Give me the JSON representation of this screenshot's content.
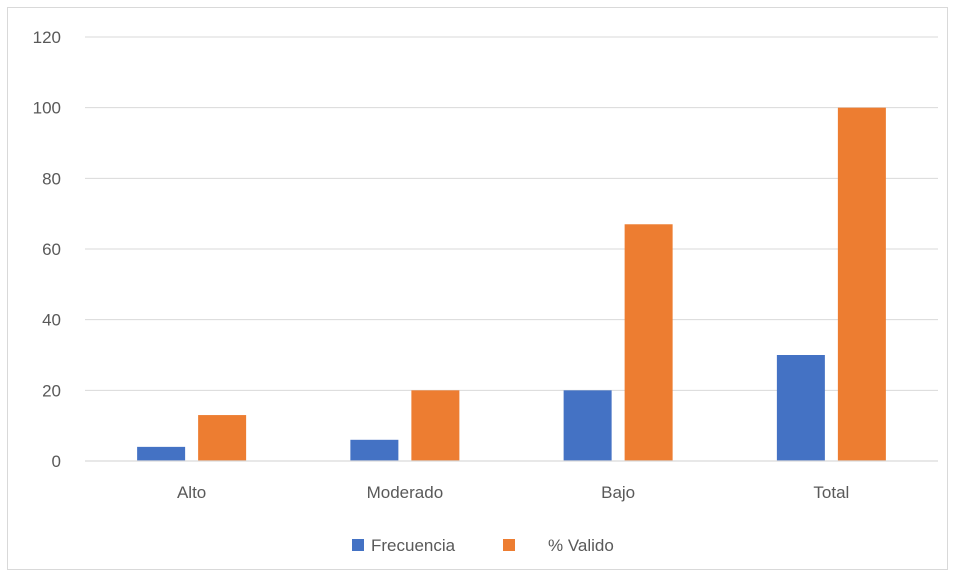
{
  "chart_data": {
    "type": "bar",
    "categories": [
      "Alto",
      "Moderado",
      "Bajo",
      "Total"
    ],
    "series": [
      {
        "name": "Frecuencia",
        "values": [
          4,
          6,
          20,
          30
        ],
        "color": "#4472c4"
      },
      {
        "name": "% Valido",
        "values": [
          13,
          20,
          67,
          100
        ],
        "color": "#ed7d31"
      }
    ],
    "ylim": [
      0,
      120
    ],
    "yticks": [
      0,
      20,
      40,
      60,
      80,
      100,
      120
    ],
    "grid": true,
    "legend_position": "bottom",
    "gridline_color": "#d9d9d9"
  }
}
